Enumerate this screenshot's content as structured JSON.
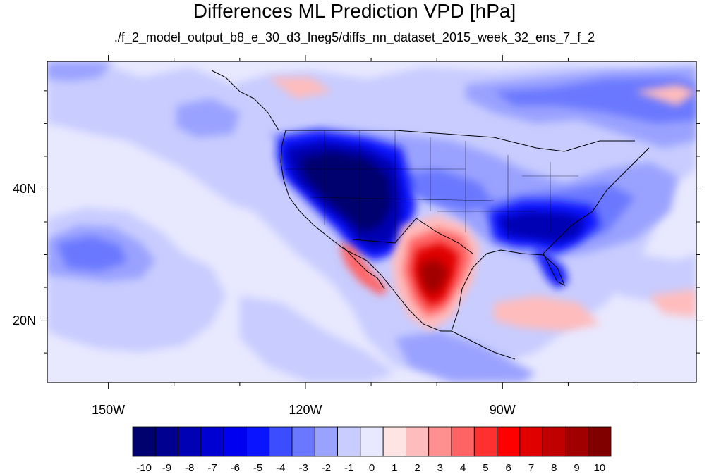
{
  "title": "Differences ML Prediction VPD [hPa]",
  "subtitle": "./f_2_model_output_b8_e_30_d3_lneg5/diffs_nn_dataset_2015_week_32_ens_7_f_2",
  "map": {
    "lon_labels": [
      {
        "label": "150W",
        "lon": -150
      },
      {
        "label": "120W",
        "lon": -120
      },
      {
        "label": "90W",
        "lon": -90
      }
    ],
    "lat_labels": [
      {
        "label": "40N",
        "lat": 40
      },
      {
        "label": "20N",
        "lat": 20
      }
    ],
    "extent": {
      "lon_min": -159.3,
      "lon_max": -60.5,
      "lat_min": 10.5,
      "lat_max": 59.5
    }
  },
  "colorbar": {
    "labels": [
      "-10",
      "-9",
      "-8",
      "-7",
      "-6",
      "-5",
      "-4",
      "-3",
      "-2",
      "-1",
      "0",
      "1",
      "2",
      "3",
      "4",
      "5",
      "6",
      "7",
      "8",
      "9",
      "10"
    ],
    "colors": [
      "#00006e",
      "#000090",
      "#0000b4",
      "#0000d2",
      "#0000f0",
      "#0a14ff",
      "#3c4cff",
      "#6a78ff",
      "#9aa2ff",
      "#c8ccff",
      "#e8e8ff",
      "#ffe4e4",
      "#ffbcbc",
      "#ff9090",
      "#ff6464",
      "#ff3030",
      "#ff0000",
      "#e00000",
      "#c00000",
      "#a00000",
      "#800000"
    ]
  }
}
